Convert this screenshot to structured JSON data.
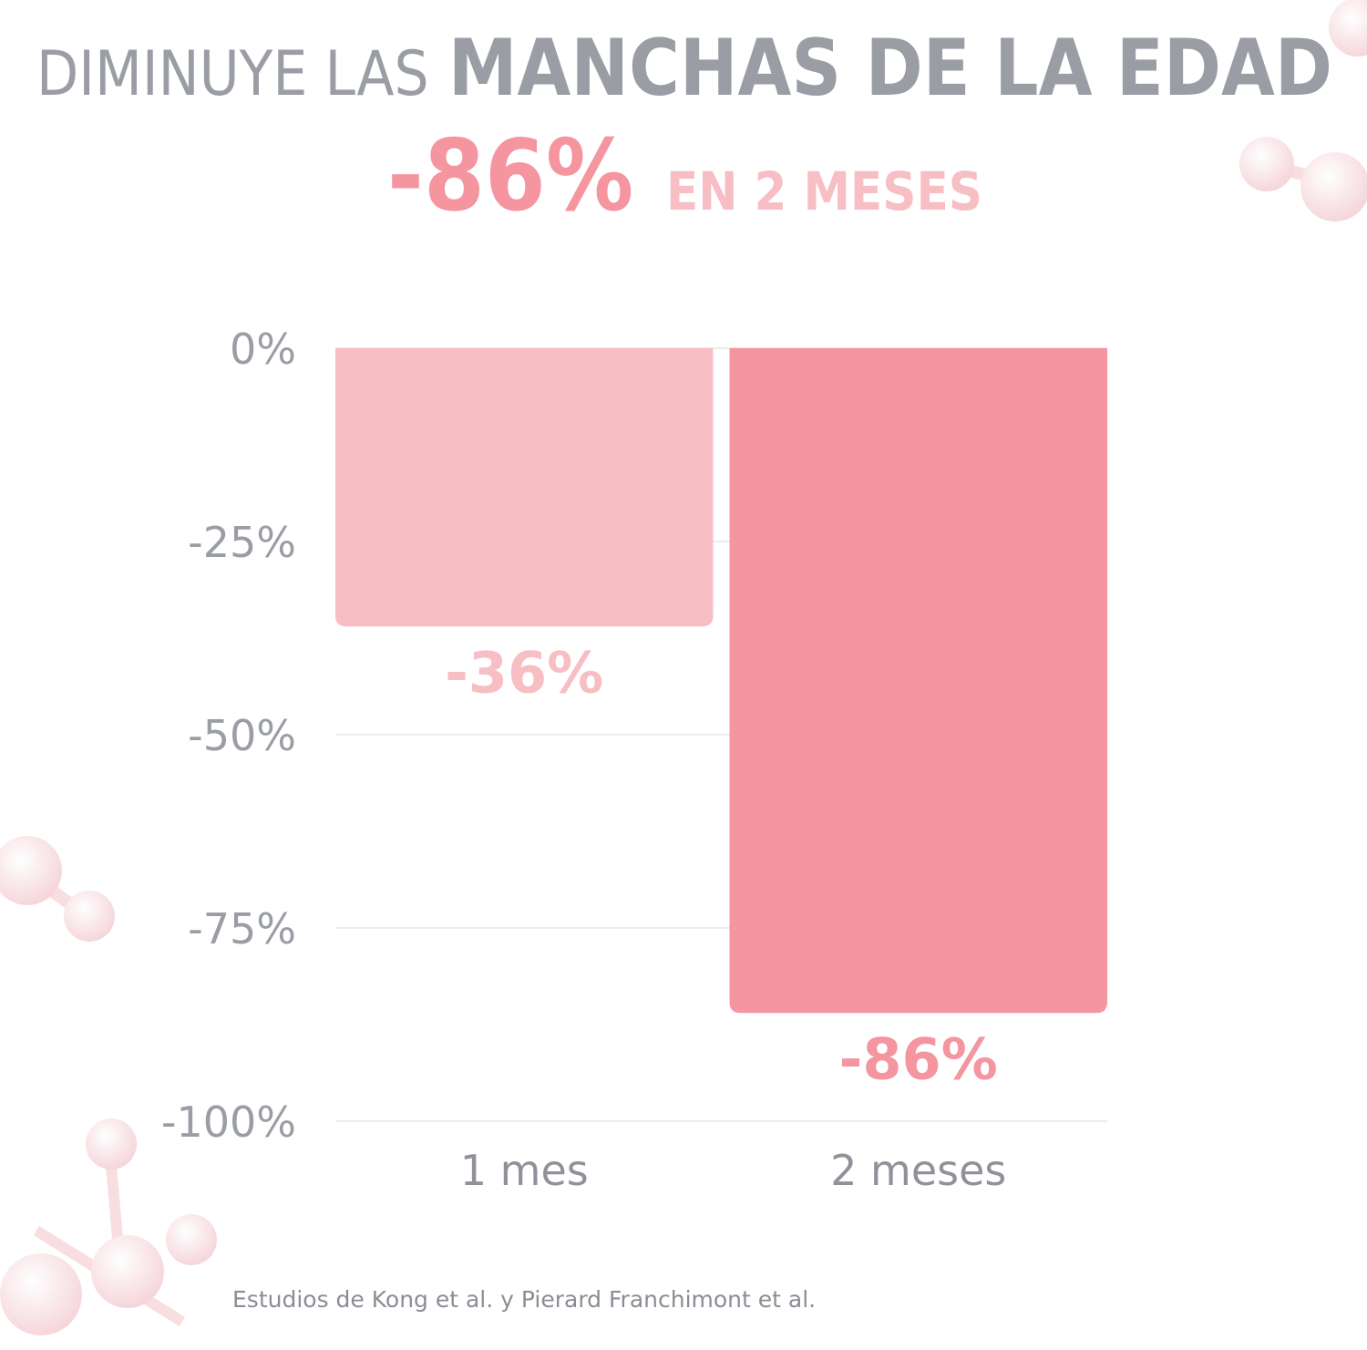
{
  "chart_data": {
    "type": "bar",
    "title": {
      "lead": "DIMINUYE LAS",
      "emphasis": "MANCHAS DE LA EDAD"
    },
    "subtitle": {
      "highlight": "-86%",
      "text": "EN 2 MESES"
    },
    "categories": [
      "1 mes",
      "2 meses"
    ],
    "values": [
      -36,
      -86
    ],
    "value_labels": [
      "-36%",
      "-86%"
    ],
    "colors": [
      "#f7bec4",
      "#f495a0"
    ],
    "ylim": [
      -100,
      0
    ],
    "yticks": [
      {
        "value": 0,
        "label": "0%"
      },
      {
        "value": -25,
        "label": "-25%"
      },
      {
        "value": -50,
        "label": "-50%"
      },
      {
        "value": -75,
        "label": "-75%"
      },
      {
        "value": -100,
        "label": "-100%"
      }
    ],
    "grid": true,
    "note": "Estudios de Kong et al. y Pierard Franchimont et al."
  }
}
